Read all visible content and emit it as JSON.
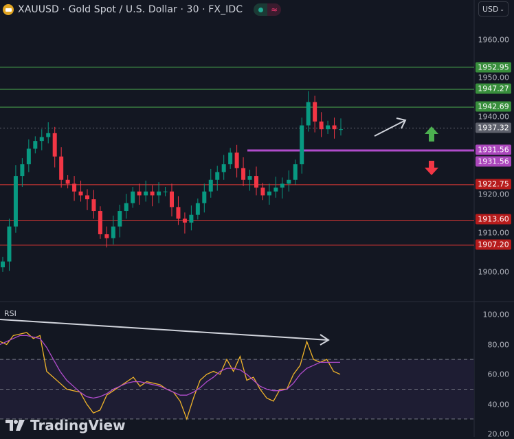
{
  "header": {
    "title": "XAUUSD · Gold Spot / U.S. Dollar · 30 · FX_IDC",
    "symbol_icon": "gold-bars-icon",
    "market_status_icon": "market-open-dot-icon",
    "delay_icon": "wave-icon",
    "currency": "USD"
  },
  "colors": {
    "background": "#131722",
    "up": "#089981",
    "down": "#f23645",
    "resistance": "#4caf50",
    "support": "#e53935",
    "pivot": "#b04ccc",
    "rsi": "#f0b429",
    "rsi_ma": "#b04ccc"
  },
  "price_axis": {
    "ticks": [
      {
        "label": "1960.00",
        "y": 58
      },
      {
        "label": "1950.00",
        "y": 113
      },
      {
        "label": "1940.00",
        "y": 170
      },
      {
        "label": "1920.00",
        "y": 283
      },
      {
        "label": "1910.00",
        "y": 339
      },
      {
        "label": "1900.00",
        "y": 396
      }
    ]
  },
  "price_tags": [
    {
      "label": "1952.95",
      "y": 98,
      "color": "#388e3c"
    },
    {
      "label": "1947.27",
      "y": 129,
      "color": "#388e3c"
    },
    {
      "label": "1942.69",
      "y": 155,
      "color": "#388e3c"
    },
    {
      "label": "1937.32",
      "y": 186,
      "color": "#5d606b"
    },
    {
      "label": "1931.56",
      "y": 218,
      "color": "#ab47bc"
    },
    {
      "label": "1931.56",
      "y": 235,
      "color": "#ab47bc"
    },
    {
      "label": "1922.75",
      "y": 268,
      "color": "#b71c1c"
    },
    {
      "label": "1913.60",
      "y": 319,
      "color": "#b71c1c"
    },
    {
      "label": "1907.20",
      "y": 356,
      "color": "#b71c1c"
    }
  ],
  "rsi_axis": {
    "ticks": [
      {
        "label": "100.00",
        "y": 458
      },
      {
        "label": "80.00",
        "y": 502
      },
      {
        "label": "60.00",
        "y": 545
      },
      {
        "label": "40.00",
        "y": 589
      },
      {
        "label": "20.00",
        "y": 632
      }
    ]
  },
  "rsi_label": "RSI",
  "branding": {
    "name": "TradingView"
  },
  "chart_data": [
    {
      "type": "candlestick",
      "title": "XAUUSD · Gold Spot / U.S. Dollar · 30 · FX_IDC",
      "ylabel": "USD",
      "ylim": [
        1896,
        1965
      ],
      "last_price": 1937.32,
      "horizontal_levels": {
        "resistance": [
          1952.95,
          1947.27,
          1942.69
        ],
        "pivot": 1931.56,
        "support": [
          1922.75,
          1913.6,
          1907.2
        ]
      },
      "annotations": [
        "white up-right arrow (bullish projection)",
        "green up arrow above pivot",
        "red down arrow below pivot"
      ],
      "approx_close_path": [
        1903,
        1912,
        1925,
        1928,
        1932,
        1934,
        1935,
        1936,
        1930,
        1924,
        1923,
        1921,
        1920,
        1919,
        1916,
        1910,
        1909,
        1912,
        1916,
        1918,
        1921,
        1920,
        1921,
        1920,
        1921,
        1921,
        1917,
        1914,
        1913,
        1915,
        1918,
        1921,
        1924,
        1926,
        1928,
        1931,
        1927,
        1924,
        1925,
        1922,
        1920,
        1921,
        1922,
        1923,
        1924,
        1928,
        1938,
        1944,
        1939,
        1937,
        1938,
        1937,
        1937
      ]
    },
    {
      "type": "line",
      "title": "RSI",
      "ylim": [
        20,
        100
      ],
      "bands": [
        70,
        50,
        30
      ],
      "series": [
        {
          "name": "RSI",
          "values": [
            82,
            80,
            86,
            87,
            88,
            84,
            86,
            62,
            58,
            54,
            50,
            49,
            48,
            40,
            34,
            36,
            46,
            49,
            52,
            55,
            58,
            52,
            55,
            54,
            53,
            50,
            48,
            42,
            30,
            44,
            56,
            60,
            62,
            60,
            70,
            62,
            72,
            56,
            58,
            50,
            44,
            42,
            50,
            50,
            60,
            66,
            82,
            70,
            68,
            70,
            62,
            60
          ]
        },
        {
          "name": "RSI-MA",
          "values": [
            80,
            82,
            84,
            86,
            86,
            85,
            84,
            78,
            70,
            62,
            56,
            52,
            48,
            45,
            44,
            45,
            47,
            50,
            52,
            54,
            55,
            55,
            54,
            53,
            52,
            50,
            48,
            46,
            46,
            48,
            51,
            55,
            58,
            62,
            64,
            64,
            63,
            60,
            56,
            52,
            50,
            49,
            49,
            50,
            54,
            60,
            64,
            66,
            68,
            68,
            68,
            68
          ]
        }
      ],
      "trendline": "white descending arrow from RSI≈85 to RSI≈78"
    }
  ]
}
